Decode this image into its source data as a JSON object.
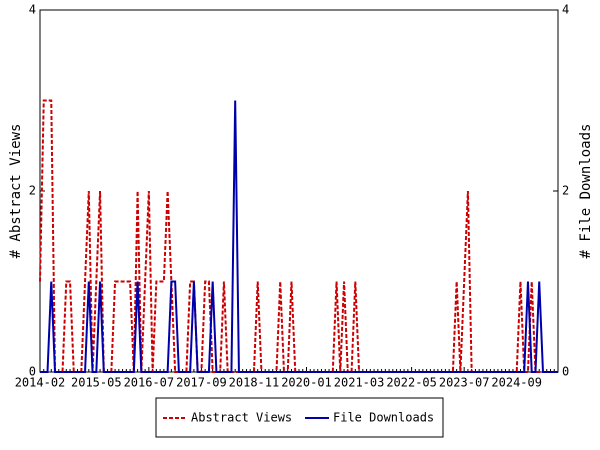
{
  "chart_data": {
    "type": "line",
    "categories": [
      "2014-02",
      null,
      null,
      null,
      null,
      null,
      null,
      null,
      null,
      null,
      null,
      null,
      null,
      null,
      null,
      "2015-05",
      null,
      null,
      null,
      null,
      null,
      null,
      null,
      null,
      null,
      null,
      null,
      null,
      null,
      "2016-07",
      null,
      null,
      null,
      null,
      null,
      null,
      null,
      null,
      null,
      null,
      null,
      null,
      null,
      "2017-09",
      null,
      null,
      null,
      null,
      null,
      null,
      null,
      null,
      null,
      null,
      null,
      null,
      null,
      "2018-11",
      null,
      null,
      null,
      null,
      null,
      null,
      null,
      null,
      null,
      null,
      null,
      null,
      null,
      "2020-01",
      null,
      null,
      null,
      null,
      null,
      null,
      null,
      null,
      null,
      null,
      null,
      null,
      null,
      "2021-03",
      null,
      null,
      null,
      null,
      null,
      null,
      null,
      null,
      null,
      null,
      null,
      null,
      null,
      "2022-05",
      null,
      null,
      null,
      null,
      null,
      null,
      null,
      null,
      null,
      null,
      null,
      null,
      null,
      "2023-07",
      null,
      null,
      null,
      null,
      null,
      null,
      null,
      null,
      null,
      null,
      null,
      null,
      null,
      "2024-09",
      null,
      null,
      null,
      null,
      null,
      null,
      null,
      null,
      null,
      null,
      null
    ],
    "series": [
      {
        "name": "Abstract Views",
        "color": "#cc0000",
        "dashed": true,
        "values": [
          1,
          3,
          3,
          3,
          0,
          0,
          0,
          1,
          1,
          0,
          0,
          0,
          1,
          2,
          0,
          1,
          2,
          0,
          0,
          0,
          1,
          1,
          1,
          1,
          1,
          0,
          2,
          0,
          1,
          2,
          0,
          1,
          1,
          1,
          2,
          1,
          0,
          0,
          0,
          0,
          1,
          1,
          0,
          0,
          1,
          1,
          0,
          0,
          0,
          1,
          0,
          0,
          0,
          0,
          0,
          0,
          0,
          0,
          1,
          0,
          0,
          0,
          0,
          0,
          1,
          0,
          0,
          1,
          0,
          0,
          0,
          0,
          0,
          0,
          0,
          0,
          0,
          0,
          0,
          1,
          0,
          1,
          0,
          0,
          1,
          0,
          0,
          0,
          0,
          0,
          0,
          0,
          0,
          0,
          0,
          0,
          0,
          0,
          0,
          0,
          0,
          0,
          0,
          0,
          0,
          0,
          0,
          0,
          0,
          0,
          0,
          1,
          0,
          1,
          2,
          0,
          0,
          0,
          0,
          0,
          0,
          0,
          0,
          0,
          0,
          0,
          0,
          0,
          1,
          0,
          0,
          1,
          0,
          0,
          0,
          0,
          0,
          0,
          0
        ]
      },
      {
        "name": "File Downloads",
        "color": "#0000aa",
        "axis": "y2",
        "values": [
          0,
          0,
          0,
          1,
          0,
          0,
          0,
          0,
          0,
          0,
          0,
          0,
          0,
          1,
          0,
          0,
          1,
          0,
          0,
          0,
          0,
          0,
          0,
          0,
          0,
          0,
          1,
          0,
          0,
          0,
          0,
          0,
          0,
          0,
          0,
          1,
          1,
          0,
          0,
          0,
          0,
          1,
          0,
          0,
          0,
          0,
          1,
          0,
          0,
          0,
          0,
          0,
          3,
          0,
          0,
          0,
          0,
          0,
          0,
          0,
          0,
          0,
          0,
          0,
          0,
          0,
          0,
          0,
          0,
          0,
          0,
          0,
          0,
          0,
          0,
          0,
          0,
          0,
          0,
          0,
          0,
          0,
          0,
          0,
          0,
          0,
          0,
          0,
          0,
          0,
          0,
          0,
          0,
          0,
          0,
          0,
          0,
          0,
          0,
          0,
          0,
          0,
          0,
          0,
          0,
          0,
          0,
          0,
          0,
          0,
          0,
          0,
          0,
          0,
          0,
          0,
          0,
          0,
          0,
          0,
          0,
          0,
          0,
          0,
          0,
          0,
          0,
          0,
          0,
          0,
          1,
          0,
          0,
          1,
          0,
          0,
          0,
          0,
          0
        ]
      }
    ],
    "ylabel": "# Abstract Views",
    "y2label": "# File Downloads",
    "ylim": [
      0,
      4
    ],
    "yticks": [
      0,
      2,
      4
    ],
    "y2lim": [
      0,
      4
    ],
    "y2ticks": [
      0,
      2,
      4
    ],
    "grid": false,
    "legend": "bottom"
  }
}
